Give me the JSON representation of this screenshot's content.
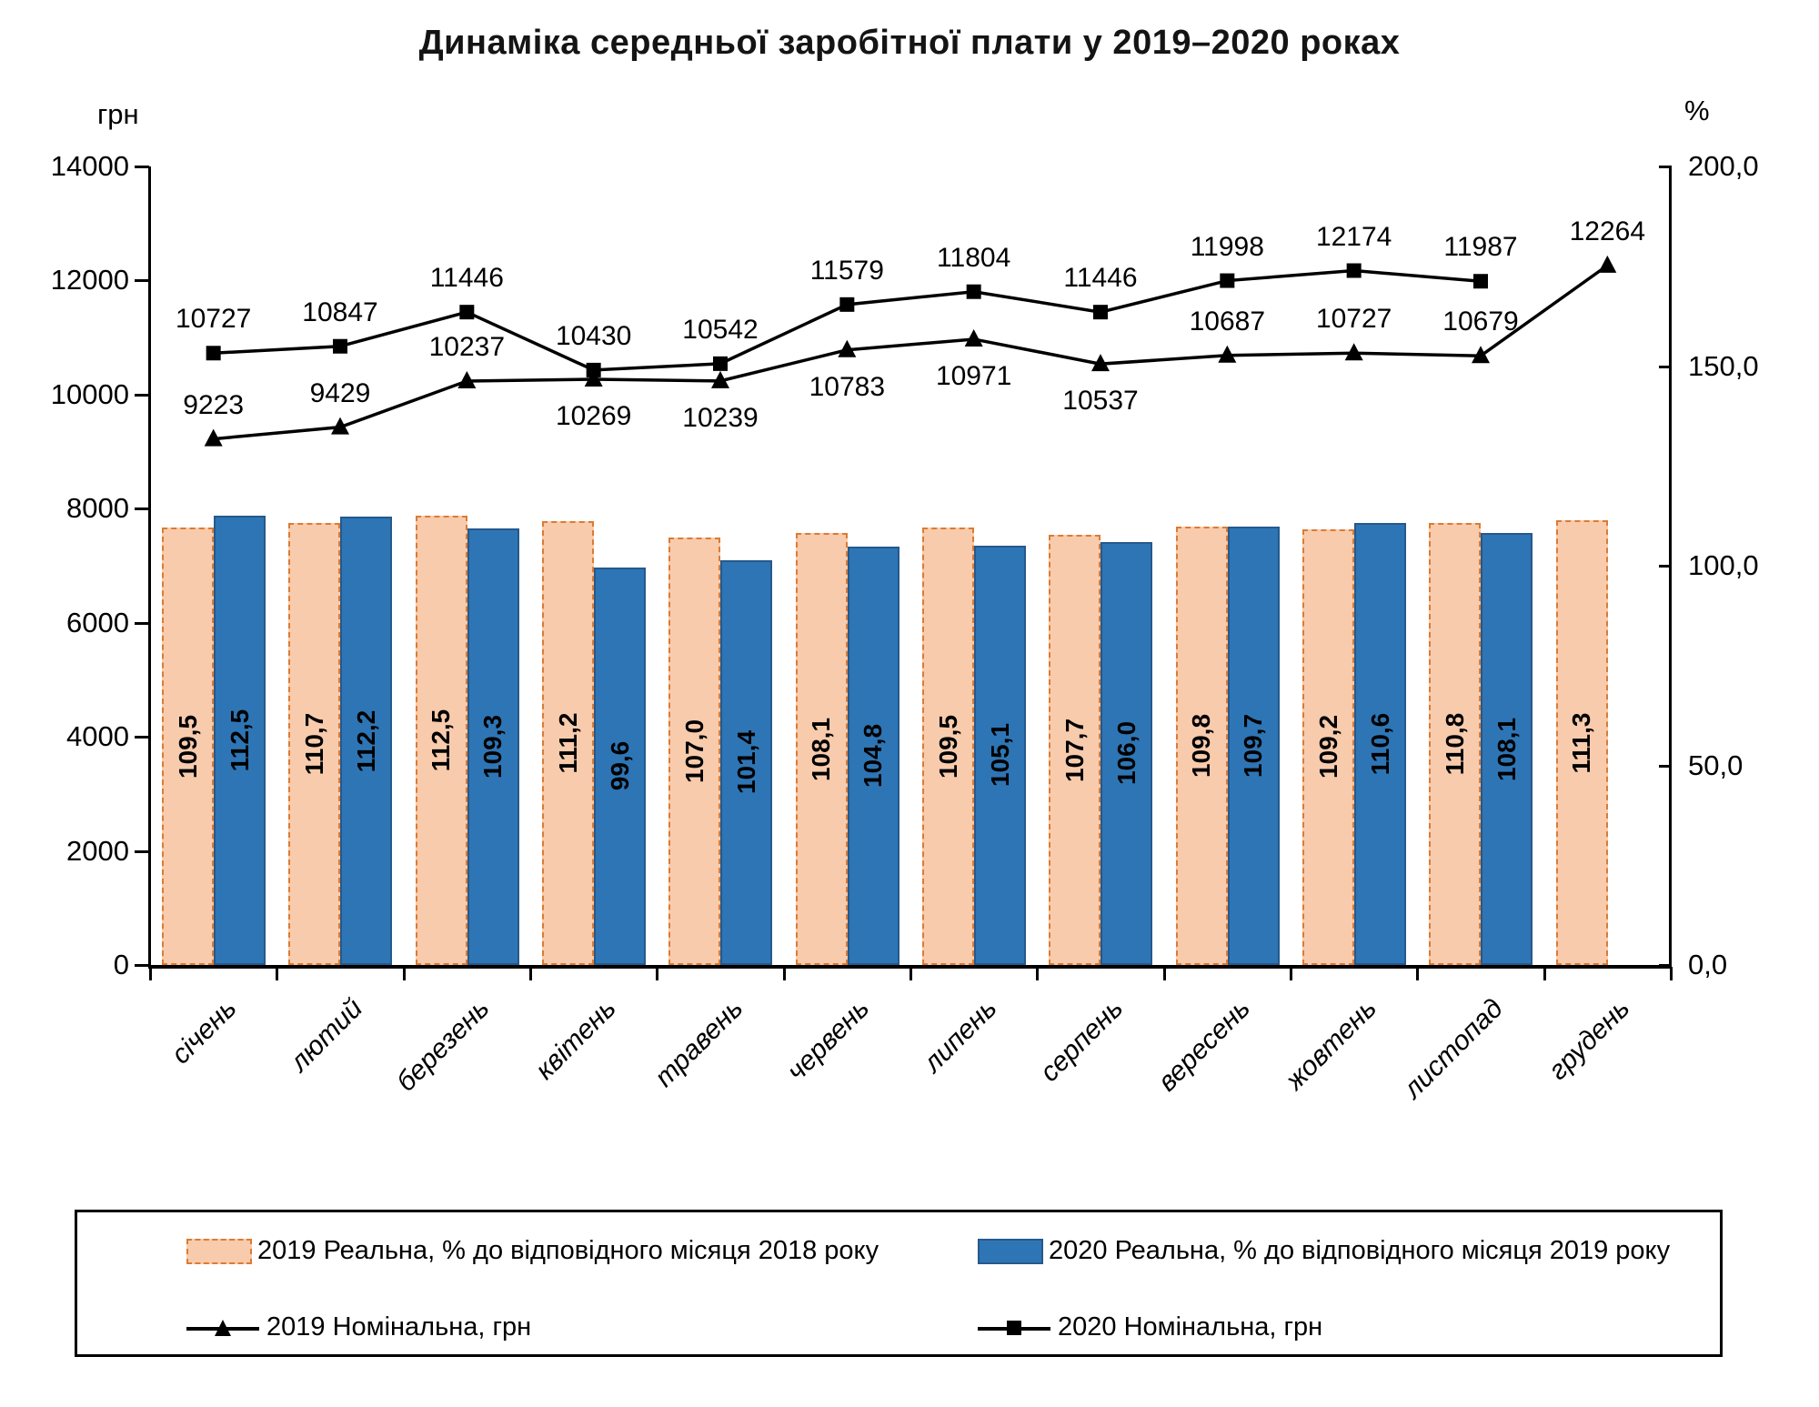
{
  "title": "Динаміка середньої заробітної плати у 2019–2020 роках",
  "left_axis": {
    "unit": "грн",
    "min": 0,
    "max": 14000,
    "step": 2000,
    "tick_labels": [
      "14000",
      "12000",
      "10000",
      "8000",
      "6000",
      "4000",
      "2000",
      "0"
    ]
  },
  "right_axis": {
    "unit": "%",
    "min": 0,
    "max": 200,
    "step": 50,
    "tick_labels": [
      "200,0",
      "150,0",
      "100,0",
      "50,0",
      "0,0"
    ]
  },
  "chart_data": {
    "type": "bar",
    "subtype": "bar-line combo, dual axis, no gridlines",
    "categories": [
      "січень",
      "лютий",
      "березень",
      "квітень",
      "травень",
      "червень",
      "липень",
      "серпень",
      "вересень",
      "жовтень",
      "листопад",
      "грудень"
    ],
    "series": [
      {
        "name": "2019 Реальна, % до відповідного місяця 2018 року",
        "type": "bar",
        "axis": "right",
        "fill": "#F8CBAD",
        "border": "#DC7B33",
        "border_style": "dashed",
        "values": [
          109.5,
          110.7,
          112.5,
          111.2,
          107.0,
          108.1,
          109.5,
          107.7,
          109.8,
          109.2,
          110.8,
          111.3
        ],
        "value_labels": [
          "109,5",
          "110,7",
          "112,5",
          "111,2",
          "107,0",
          "108,1",
          "109,5",
          "107,7",
          "109,8",
          "109,2",
          "110,8",
          "111,3"
        ]
      },
      {
        "name": "2020 Реальна, % до відповідного місяця 2019 року",
        "type": "bar",
        "axis": "right",
        "fill": "#2E75B5",
        "border": "#25598C",
        "border_style": "solid",
        "values": [
          112.5,
          112.2,
          109.3,
          99.6,
          101.4,
          104.8,
          105.1,
          106.0,
          109.7,
          110.6,
          108.1,
          null
        ],
        "value_labels": [
          "112,5",
          "112,2",
          "109,3",
          "99,6",
          "101,4",
          "104,8",
          "105,1",
          "106,0",
          "109,7",
          "110,6",
          "108,1",
          null
        ]
      },
      {
        "name": "2019 Номінальна, грн",
        "type": "line",
        "axis": "left",
        "marker": "triangle",
        "color": "#000000",
        "values": [
          9223,
          9429,
          10237,
          10269,
          10239,
          10783,
          10971,
          10537,
          10687,
          10727,
          10679,
          12264
        ],
        "value_labels": [
          "9223",
          "9429",
          "10237",
          "10269",
          "10239",
          "10783",
          "10971",
          "10537",
          "10687",
          "10727",
          "10679",
          "12264"
        ],
        "label_pos": [
          "above",
          "above",
          "above",
          "below",
          "below",
          "below",
          "below",
          "below",
          "above",
          "above",
          "above",
          "above"
        ]
      },
      {
        "name": "2020 Номінальна, грн",
        "type": "line",
        "axis": "left",
        "marker": "square",
        "color": "#000000",
        "values": [
          10727,
          10847,
          11446,
          10430,
          10542,
          11579,
          11804,
          11446,
          11998,
          12174,
          11987,
          null
        ],
        "value_labels": [
          "10727",
          "10847",
          "11446",
          "10430",
          "10542",
          "11579",
          "11804",
          "11446",
          "11998",
          "12174",
          "11987",
          null
        ],
        "label_pos": [
          "above",
          "above",
          "above",
          "above",
          "above",
          "above",
          "above",
          "above",
          "above",
          "above",
          "above",
          null
        ]
      }
    ],
    "legend_position": "bottom box, two columns"
  },
  "legend": {
    "items": [
      {
        "swatch": "bar-orange",
        "label": "2019 Реальна, % до відповідного місяця 2018 року"
      },
      {
        "swatch": "bar-blue",
        "label": "2020 Реальна, % до відповідного місяця 2019 року"
      },
      {
        "swatch": "line-triangle",
        "label": "2019 Номінальна, грн"
      },
      {
        "swatch": "line-square",
        "label": "2020 Номінальна, грн"
      }
    ]
  }
}
